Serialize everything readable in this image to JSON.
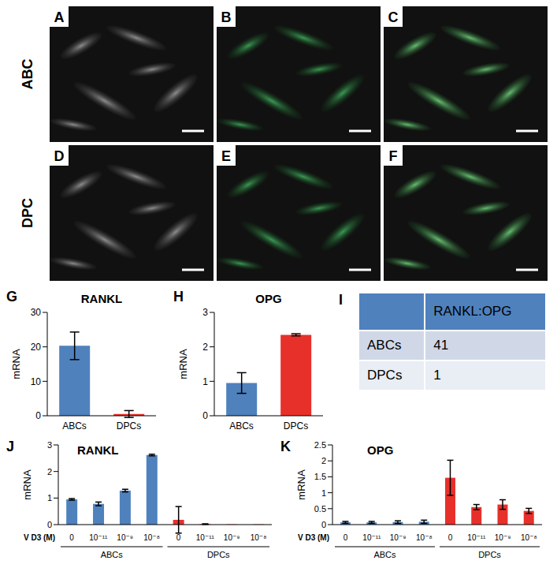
{
  "images": {
    "row_labels": [
      "ABC",
      "DPC"
    ],
    "panels": [
      [
        "A",
        "B",
        "C"
      ],
      [
        "D",
        "E",
        "F"
      ]
    ]
  },
  "chart_data": [
    {
      "panel": "G",
      "type": "bar",
      "title": "RANKL",
      "ylabel": "mRNA",
      "categories": [
        "ABCs",
        "DPCs"
      ],
      "values": [
        20.3,
        0.5
      ],
      "errors": [
        4.0,
        1.0
      ],
      "colors": [
        "#4f81bd",
        "#e8302a"
      ],
      "ylim": [
        0,
        30
      ],
      "yticks": [
        0,
        10,
        20,
        30
      ]
    },
    {
      "panel": "H",
      "type": "bar",
      "title": "OPG",
      "ylabel": "mRNA",
      "categories": [
        "ABCs",
        "DPCs"
      ],
      "values": [
        0.95,
        2.35
      ],
      "errors": [
        0.3,
        0.03
      ],
      "colors": [
        "#4f81bd",
        "#e8302a"
      ],
      "ylim": [
        0,
        3
      ],
      "yticks": [
        0,
        1,
        2,
        3
      ]
    },
    {
      "panel": "J",
      "type": "bar",
      "title": "RANKL",
      "ylabel": "mRNA",
      "xlabel": "V D3 (M)",
      "categories": [
        "0",
        "10⁻¹¹",
        "10⁻⁹",
        "10⁻⁸",
        "0",
        "10⁻¹¹",
        "10⁻⁹",
        "10⁻⁸"
      ],
      "groups": [
        "ABCs",
        "ABCs",
        "ABCs",
        "ABCs",
        "DPCs",
        "DPCs",
        "DPCs",
        "DPCs"
      ],
      "values": [
        0.95,
        0.78,
        1.28,
        2.62,
        0.18,
        0.02,
        0.01,
        0.01
      ],
      "errors": [
        0.03,
        0.07,
        0.05,
        0.03,
        0.5,
        0.01,
        0,
        0
      ],
      "colors": [
        "#4f81bd",
        "#4f81bd",
        "#4f81bd",
        "#4f81bd",
        "#e8302a",
        "#e8302a",
        "#e8302a",
        "#e8302a"
      ],
      "ylim": [
        0,
        3
      ],
      "yticks": [
        0,
        1,
        2,
        3
      ]
    },
    {
      "panel": "K",
      "type": "bar",
      "title": "OPG",
      "ylabel": "mRNA",
      "xlabel": "V D3 (M)",
      "categories": [
        "0",
        "10⁻¹¹",
        "10⁻⁹",
        "10⁻⁸",
        "0",
        "10⁻¹¹",
        "10⁻⁹",
        "10⁻⁸"
      ],
      "groups": [
        "ABCs",
        "ABCs",
        "ABCs",
        "ABCs",
        "DPCs",
        "DPCs",
        "DPCs",
        "DPCs"
      ],
      "values": [
        0.07,
        0.07,
        0.08,
        0.09,
        1.47,
        0.55,
        0.63,
        0.43
      ],
      "errors": [
        0.03,
        0.03,
        0.04,
        0.05,
        0.55,
        0.08,
        0.15,
        0.08
      ],
      "colors": [
        "#4f81bd",
        "#4f81bd",
        "#4f81bd",
        "#4f81bd",
        "#e8302a",
        "#e8302a",
        "#e8302a",
        "#e8302a"
      ],
      "ylim": [
        0,
        2.5
      ],
      "yticks": [
        0,
        0.5,
        1,
        1.5,
        2,
        2.5
      ]
    }
  ],
  "table": {
    "panel": "I",
    "header": "RANKL:OPG",
    "rows": [
      [
        "ABCs",
        41
      ],
      [
        "DPCs",
        1
      ]
    ]
  }
}
